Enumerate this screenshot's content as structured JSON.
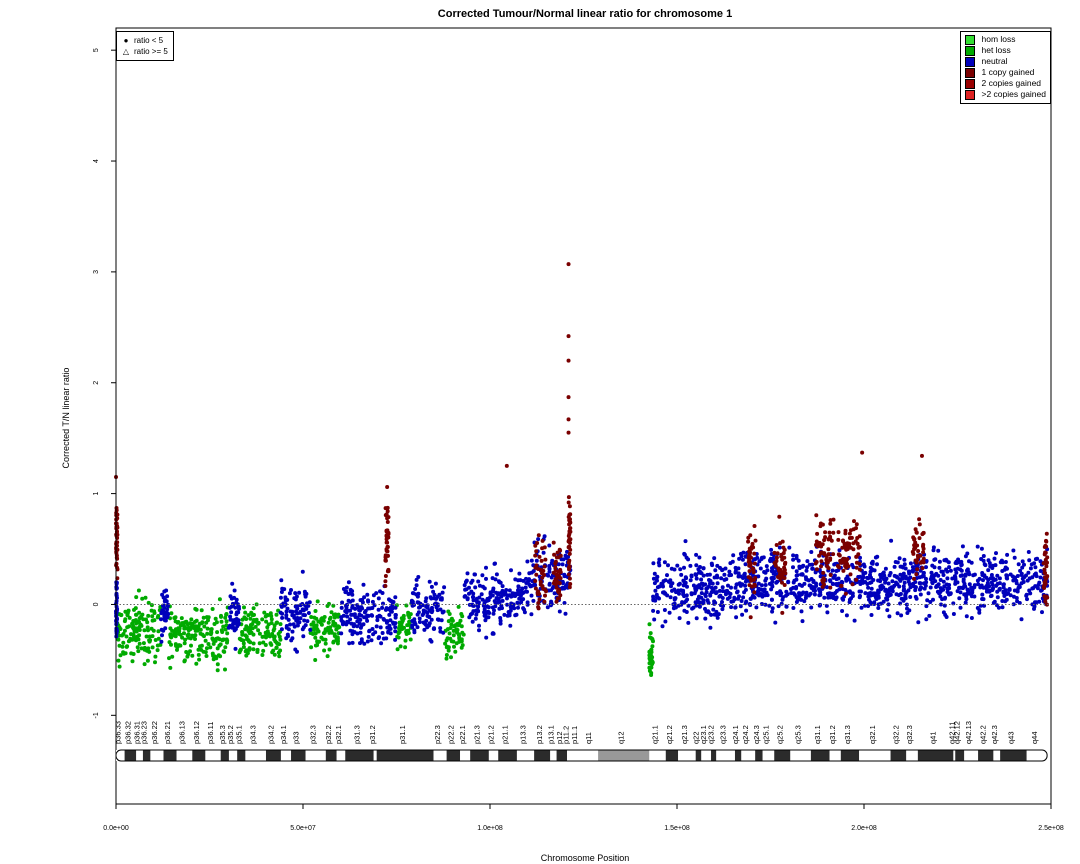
{
  "chart_data": {
    "type": "scatter",
    "title": "Corrected Tumour/Normal linear ratio for chromosome  1",
    "xlabel": "Chromosome Position",
    "ylabel": "Corrected T/N linear ratio",
    "xlim": [
      0,
      250000000
    ],
    "ylim": [
      -1.8,
      5.2
    ],
    "x_ticks": [
      "0.0e+00",
      "5.0e+07",
      "1.0e+08",
      "1.5e+08",
      "2.0e+08",
      "2.5e+08"
    ],
    "y_ticks": [
      "-1",
      "0",
      "1",
      "2",
      "3",
      "4",
      "5"
    ],
    "reference_line": {
      "y": 0,
      "style": "dotted"
    },
    "shape_legend": [
      {
        "symbol": "●",
        "label": "ratio < 5"
      },
      {
        "symbol": "△",
        "label": "ratio >= 5"
      }
    ],
    "color_legend": [
      {
        "label": "hom loss",
        "color": "#33dd33"
      },
      {
        "label": "het loss",
        "color": "#00aa00"
      },
      {
        "label": "neutral",
        "color": "#0000bb"
      },
      {
        "label": "1 copy gained",
        "color": "#7a0000"
      },
      {
        "label": "2 copies gained",
        "color": "#990000"
      },
      {
        "label": ">2 copies gained",
        "color": "#dd2222"
      }
    ],
    "series": [
      {
        "name": "het loss",
        "color": "#00aa00",
        "segments": [
          {
            "x": [
              300000,
              12000000
            ],
            "y_center": -0.25,
            "spread": 0.3
          },
          {
            "x": [
              14000000,
              30000000
            ],
            "y_center": -0.28,
            "spread": 0.28
          },
          {
            "x": [
              33000000,
              44000000
            ],
            "y_center": -0.25,
            "spread": 0.25
          },
          {
            "x": [
              52000000,
              60000000
            ],
            "y_center": -0.22,
            "spread": 0.22
          },
          {
            "x": [
              75000000,
              79000000
            ],
            "y_center": -0.2,
            "spread": 0.2
          },
          {
            "x": [
              88000000,
              93000000
            ],
            "y_center": -0.25,
            "spread": 0.22
          },
          {
            "x": [
              142600000,
              143600000
            ],
            "y_center": -0.45,
            "spread": 0.2
          }
        ]
      },
      {
        "name": "neutral",
        "color": "#0000bb",
        "segments": [
          {
            "x": [
              0,
              300000
            ],
            "y_center": -0.05,
            "spread": 0.3
          },
          {
            "x": [
              12000000,
              14000000
            ],
            "y_center": -0.05,
            "spread": 0.25
          },
          {
            "x": [
              30000000,
              33000000
            ],
            "y_center": -0.1,
            "spread": 0.3
          },
          {
            "x": [
              44000000,
              52000000
            ],
            "y_center": -0.1,
            "spread": 0.28
          },
          {
            "x": [
              60000000,
              75000000
            ],
            "y_center": -0.1,
            "spread": 0.28
          },
          {
            "x": [
              79000000,
              88000000
            ],
            "y_center": -0.05,
            "spread": 0.3
          },
          {
            "x": [
              93000000,
              110000000
            ],
            "y_center": 0.05,
            "spread": 0.3
          },
          {
            "x": [
              110000000,
              121500000
            ],
            "y_center": 0.25,
            "spread": 0.3
          },
          {
            "x": [
              143600000,
              165000000
            ],
            "y_center": 0.15,
            "spread": 0.32
          },
          {
            "x": [
              165000000,
              249000000
            ],
            "y_center": 0.2,
            "spread": 0.3
          }
        ]
      },
      {
        "name": "1 copy gained",
        "color": "#7a0000",
        "segments": [
          {
            "x": [
              0,
              400000
            ],
            "y_center": 0.6,
            "spread": 0.35
          },
          {
            "x": [
              72000000,
              73000000
            ],
            "y_center": 0.55,
            "spread": 0.35
          },
          {
            "x": [
              112000000,
              115000000
            ],
            "y_center": 0.3,
            "spread": 0.35
          },
          {
            "x": [
              117000000,
              119000000
            ],
            "y_center": 0.3,
            "spread": 0.3
          },
          {
            "x": [
              121000000,
              121500000
            ],
            "y_center": 0.6,
            "spread": 0.4
          },
          {
            "x": [
              169000000,
              171000000
            ],
            "y_center": 0.35,
            "spread": 0.35
          },
          {
            "x": [
              176000000,
              179000000
            ],
            "y_center": 0.35,
            "spread": 0.35
          },
          {
            "x": [
              187000000,
              192000000
            ],
            "y_center": 0.45,
            "spread": 0.35
          },
          {
            "x": [
              193000000,
              199000000
            ],
            "y_center": 0.45,
            "spread": 0.35
          },
          {
            "x": [
              213000000,
              216000000
            ],
            "y_center": 0.5,
            "spread": 0.35
          },
          {
            "x": [
              248000000,
              249000000
            ],
            "y_center": 0.35,
            "spread": 0.35
          }
        ]
      }
    ],
    "outliers": [
      {
        "x": 121000000,
        "y": 3.07
      },
      {
        "x": 121000000,
        "y": 2.42
      },
      {
        "x": 121000000,
        "y": 2.2
      },
      {
        "x": 121000000,
        "y": 1.87
      },
      {
        "x": 121000000,
        "y": 1.67
      },
      {
        "x": 121000000,
        "y": 1.55
      },
      {
        "x": 104500000,
        "y": 1.25
      },
      {
        "x": 199500000,
        "y": 1.37
      },
      {
        "x": 215500000,
        "y": 1.34
      },
      {
        "x": 0,
        "y": 1.15
      },
      {
        "x": 72500000,
        "y": 1.06
      }
    ],
    "ideogram": {
      "label_type": "cytoband",
      "bands": [
        {
          "name": "p36.33",
          "start": 0,
          "end": 2300000,
          "stain": "gneg"
        },
        {
          "name": "p36.32",
          "start": 2300000,
          "end": 5400000,
          "stain": "gpos25"
        },
        {
          "name": "p36.31",
          "start": 5400000,
          "end": 7200000,
          "stain": "gneg"
        },
        {
          "name": "p36.23",
          "start": 7200000,
          "end": 9200000,
          "stain": "gpos25"
        },
        {
          "name": "p36.22",
          "start": 9200000,
          "end": 12700000,
          "stain": "gneg"
        },
        {
          "name": "p36.21",
          "start": 12700000,
          "end": 16200000,
          "stain": "gpos50"
        },
        {
          "name": "p36.13",
          "start": 16200000,
          "end": 20400000,
          "stain": "gneg"
        },
        {
          "name": "p36.12",
          "start": 20400000,
          "end": 23900000,
          "stain": "gpos25"
        },
        {
          "name": "p36.11",
          "start": 23900000,
          "end": 28000000,
          "stain": "gneg"
        },
        {
          "name": "p35.3",
          "start": 28000000,
          "end": 30200000,
          "stain": "gpos25"
        },
        {
          "name": "p35.2",
          "start": 30200000,
          "end": 32400000,
          "stain": "gneg"
        },
        {
          "name": "p35.1",
          "start": 32400000,
          "end": 34600000,
          "stain": "gpos25"
        },
        {
          "name": "p34.3",
          "start": 34600000,
          "end": 40100000,
          "stain": "gneg"
        },
        {
          "name": "p34.2",
          "start": 40100000,
          "end": 44100000,
          "stain": "gpos25"
        },
        {
          "name": "p34.1",
          "start": 44100000,
          "end": 46800000,
          "stain": "gneg"
        },
        {
          "name": "p33",
          "start": 46800000,
          "end": 50700000,
          "stain": "gpos75"
        },
        {
          "name": "p32.3",
          "start": 50700000,
          "end": 56100000,
          "stain": "gneg"
        },
        {
          "name": "p32.2",
          "start": 56100000,
          "end": 59000000,
          "stain": "gpos50"
        },
        {
          "name": "p32.1",
          "start": 59000000,
          "end": 61300000,
          "stain": "gneg"
        },
        {
          "name": "p31.3",
          "start": 61300000,
          "end": 68900000,
          "stain": "gpos50"
        },
        {
          "name": "p31.2",
          "start": 68900000,
          "end": 69700000,
          "stain": "gneg"
        },
        {
          "name": "p31.1",
          "start": 69700000,
          "end": 84900000,
          "stain": "gpos100"
        },
        {
          "name": "p22.3",
          "start": 84900000,
          "end": 88400000,
          "stain": "gneg"
        },
        {
          "name": "p22.2",
          "start": 88400000,
          "end": 92000000,
          "stain": "gpos75"
        },
        {
          "name": "p22.1",
          "start": 92000000,
          "end": 94700000,
          "stain": "gneg"
        },
        {
          "name": "p21.3",
          "start": 94700000,
          "end": 99700000,
          "stain": "gpos75"
        },
        {
          "name": "p21.2",
          "start": 99700000,
          "end": 102200000,
          "stain": "gneg"
        },
        {
          "name": "p21.1",
          "start": 102200000,
          "end": 107200000,
          "stain": "gpos100"
        },
        {
          "name": "p13.3",
          "start": 107200000,
          "end": 111800000,
          "stain": "gneg"
        },
        {
          "name": "p13.2",
          "start": 111800000,
          "end": 116100000,
          "stain": "gpos50"
        },
        {
          "name": "p13.1",
          "start": 116100000,
          "end": 117800000,
          "stain": "gneg"
        },
        {
          "name": "p12",
          "start": 117800000,
          "end": 120600000,
          "stain": "gpos50"
        },
        {
          "name": "p11.2",
          "start": 120600000,
          "end": 121500000,
          "stain": "gneg"
        },
        {
          "name": "p11.1",
          "start": 121500000,
          "end": 125000000,
          "stain": "acen"
        },
        {
          "name": "q11",
          "start": 125000000,
          "end": 128900000,
          "stain": "acen"
        },
        {
          "name": "q12",
          "start": 128900000,
          "end": 142600000,
          "stain": "gvar"
        },
        {
          "name": "q21.1",
          "start": 142600000,
          "end": 147000000,
          "stain": "gneg"
        },
        {
          "name": "q21.2",
          "start": 147000000,
          "end": 150300000,
          "stain": "gpos50"
        },
        {
          "name": "q21.3",
          "start": 150300000,
          "end": 155000000,
          "stain": "gneg"
        },
        {
          "name": "q22",
          "start": 155000000,
          "end": 156500000,
          "stain": "gpos50"
        },
        {
          "name": "q23.1",
          "start": 156500000,
          "end": 159100000,
          "stain": "gneg"
        },
        {
          "name": "q23.2",
          "start": 159100000,
          "end": 160500000,
          "stain": "gpos50"
        },
        {
          "name": "q23.3",
          "start": 160500000,
          "end": 165500000,
          "stain": "gneg"
        },
        {
          "name": "q24.1",
          "start": 165500000,
          "end": 167200000,
          "stain": "gpos50"
        },
        {
          "name": "q24.2",
          "start": 167200000,
          "end": 170900000,
          "stain": "gneg"
        },
        {
          "name": "q24.3",
          "start": 170900000,
          "end": 172900000,
          "stain": "gpos75"
        },
        {
          "name": "q25.1",
          "start": 172900000,
          "end": 176000000,
          "stain": "gneg"
        },
        {
          "name": "q25.2",
          "start": 176000000,
          "end": 180300000,
          "stain": "gpos50"
        },
        {
          "name": "q25.3",
          "start": 180300000,
          "end": 185800000,
          "stain": "gneg"
        },
        {
          "name": "q31.1",
          "start": 185800000,
          "end": 190800000,
          "stain": "gpos100"
        },
        {
          "name": "q31.2",
          "start": 190800000,
          "end": 193800000,
          "stain": "gneg"
        },
        {
          "name": "q31.3",
          "start": 193800000,
          "end": 198700000,
          "stain": "gpos100"
        },
        {
          "name": "q32.1",
          "start": 198700000,
          "end": 207100000,
          "stain": "gneg"
        },
        {
          "name": "q32.2",
          "start": 207100000,
          "end": 211300000,
          "stain": "gpos25"
        },
        {
          "name": "q32.3",
          "start": 211300000,
          "end": 214400000,
          "stain": "gneg"
        },
        {
          "name": "q41",
          "start": 214400000,
          "end": 223900000,
          "stain": "gpos100"
        },
        {
          "name": "q42.11",
          "start": 223900000,
          "end": 224400000,
          "stain": "gneg"
        },
        {
          "name": "q42.12",
          "start": 224400000,
          "end": 226800000,
          "stain": "gpos25"
        },
        {
          "name": "q42.13",
          "start": 226800000,
          "end": 230500000,
          "stain": "gneg"
        },
        {
          "name": "q42.2",
          "start": 230500000,
          "end": 234600000,
          "stain": "gpos50"
        },
        {
          "name": "q42.3",
          "start": 234600000,
          "end": 236400000,
          "stain": "gneg"
        },
        {
          "name": "q43",
          "start": 236400000,
          "end": 243500000,
          "stain": "gpos75"
        },
        {
          "name": "q44",
          "start": 243500000,
          "end": 248956422,
          "stain": "gneg"
        }
      ]
    }
  }
}
